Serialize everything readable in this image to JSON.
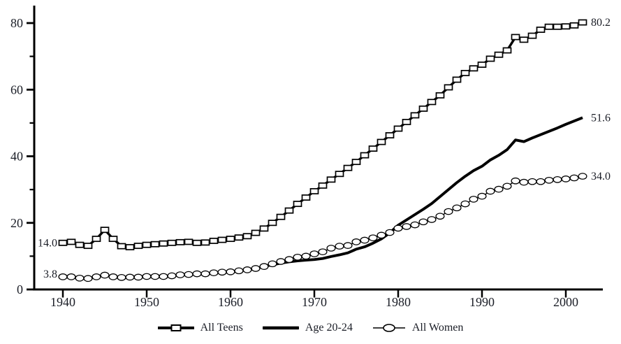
{
  "chart_data": {
    "type": "line",
    "xlabel": "",
    "ylabel": "",
    "x_range": [
      1940,
      2002
    ],
    "xticks": [
      1940,
      1950,
      1960,
      1970,
      1980,
      1990,
      2000
    ],
    "yticks_major": [
      0,
      20,
      40,
      60,
      80
    ],
    "yticks_minor": [
      10,
      30,
      50,
      70
    ],
    "ylim": [
      0,
      85
    ],
    "grid": false,
    "legend_position": "bottom",
    "series": [
      {
        "name": "All Teens",
        "marker": "square",
        "line_width": 3.4,
        "start_year": 1940,
        "start_label": "14.0",
        "start_label_dy": 0,
        "end_label": "80.2",
        "values": [
          14.0,
          14.3,
          13.4,
          13.1,
          15.2,
          17.9,
          15.2,
          13.0,
          12.7,
          13.1,
          13.4,
          13.6,
          13.8,
          14.0,
          14.2,
          14.3,
          14.0,
          14.1,
          14.6,
          14.9,
          15.2,
          15.6,
          16.0,
          17.0,
          18.3,
          20.0,
          21.8,
          23.7,
          25.7,
          27.6,
          29.5,
          31.2,
          33.0,
          34.7,
          36.5,
          38.3,
          40.3,
          42.3,
          44.3,
          46.3,
          48.3,
          50.3,
          52.3,
          54.3,
          56.3,
          58.3,
          60.7,
          63.0,
          65.0,
          66.4,
          67.5,
          69.3,
          70.5,
          71.8,
          75.8,
          75.0,
          76.2,
          78.0,
          78.9,
          78.9,
          79.0,
          79.3,
          80.2
        ]
      },
      {
        "name": "Age 20-24",
        "marker": "none",
        "line_width": 3.9,
        "start_year": 1964,
        "start_label": "",
        "start_label_dy": 0,
        "end_label": "51.6",
        "values": [
          7.0,
          7.4,
          7.9,
          8.3,
          8.6,
          8.8,
          9.0,
          9.3,
          9.9,
          10.4,
          11.0,
          12.1,
          12.8,
          13.9,
          15.2,
          17.0,
          19.3,
          20.9,
          22.5,
          24.1,
          25.8,
          27.9,
          30.0,
          32.1,
          34.0,
          35.7,
          37.0,
          38.9,
          40.3,
          42.0,
          44.9,
          44.4,
          45.5,
          46.5,
          47.5,
          48.5,
          49.6,
          50.6,
          51.6
        ]
      },
      {
        "name": "All Women",
        "marker": "circle",
        "line_width": 1.4,
        "start_year": 1940,
        "start_label": "3.8",
        "start_label_dy": -4,
        "end_label": "34.0",
        "values": [
          3.8,
          3.8,
          3.4,
          3.3,
          3.8,
          4.3,
          3.8,
          3.6,
          3.7,
          3.7,
          3.9,
          3.9,
          3.9,
          4.1,
          4.4,
          4.5,
          4.7,
          4.7,
          5.0,
          5.2,
          5.3,
          5.6,
          5.9,
          6.3,
          6.9,
          7.7,
          8.4,
          9.0,
          9.7,
          10.0,
          10.7,
          11.3,
          12.4,
          13.0,
          13.2,
          14.3,
          14.8,
          15.5,
          16.3,
          17.1,
          18.4,
          18.9,
          19.4,
          20.3,
          21.0,
          22.0,
          23.4,
          24.5,
          25.7,
          27.1,
          28.0,
          29.5,
          30.1,
          31.0,
          32.6,
          32.2,
          32.4,
          32.4,
          32.8,
          33.0,
          33.2,
          33.5,
          34.0
        ]
      }
    ]
  },
  "legend": {
    "items": [
      {
        "label": "All Teens"
      },
      {
        "label": "Age 20-24"
      },
      {
        "label": "All Women"
      }
    ]
  },
  "colors": {
    "line": "#000000",
    "marker_fill": "#ffffff",
    "text": "#1a1d26",
    "background": "#ffffff"
  }
}
